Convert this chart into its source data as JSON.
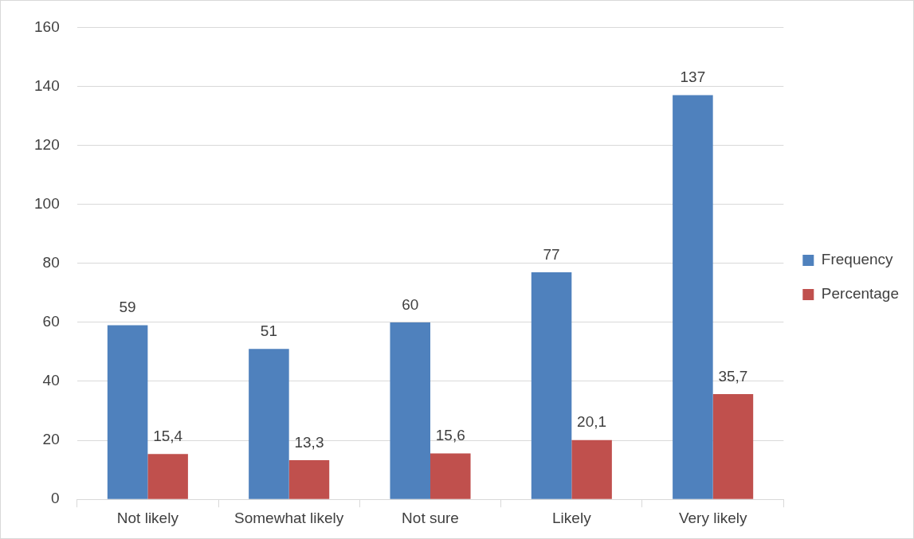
{
  "chart_data": {
    "type": "bar",
    "categories": [
      "Not likely",
      "Somewhat likely",
      "Not sure",
      "Likely",
      "Very likely"
    ],
    "series": [
      {
        "name": "Frequency",
        "color": "#4f81bd",
        "values": [
          59,
          51,
          60,
          77,
          137
        ],
        "value_labels": [
          "59",
          "51",
          "60",
          "77",
          "137"
        ]
      },
      {
        "name": "Percentage",
        "color": "#c0504d",
        "values": [
          15.4,
          13.3,
          15.6,
          20.1,
          35.7
        ],
        "value_labels": [
          "15,4",
          "13,3",
          "15,6",
          "20,1",
          "35,7"
        ]
      }
    ],
    "ylim": [
      0,
      160
    ],
    "yticks": [
      0,
      20,
      40,
      60,
      80,
      100,
      120,
      140,
      160
    ],
    "grid": "y",
    "legend": "right"
  }
}
